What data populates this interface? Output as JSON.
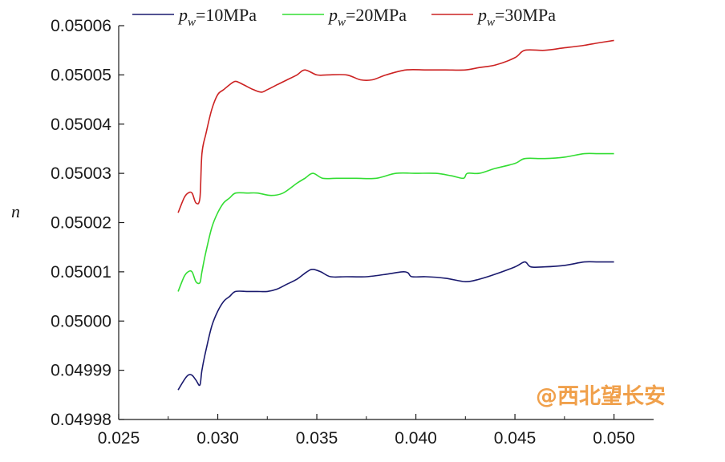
{
  "chart_data": {
    "type": "line",
    "xlabel": "",
    "ylabel": "n",
    "xlim": [
      0.025,
      0.052
    ],
    "ylim": [
      0.04998,
      0.05006
    ],
    "xticks": [
      "0.025",
      "0.030",
      "0.035",
      "0.040",
      "0.045",
      "0.050"
    ],
    "yticks": [
      "0.04998",
      "0.04999",
      "0.05000",
      "0.05001",
      "0.05002",
      "0.05003",
      "0.05004",
      "0.05005",
      "0.05006"
    ],
    "legend_position": "top",
    "series": [
      {
        "name": "pw=10MPa",
        "legend_symbol": "p",
        "legend_sub": "w",
        "legend_rest": "=10MPa",
        "color": "#1a1a6e",
        "points": [
          [
            0.028,
            0.049986
          ],
          [
            0.0283,
            0.049988
          ],
          [
            0.0285,
            0.049989
          ],
          [
            0.0287,
            0.049989
          ],
          [
            0.0289,
            0.049988
          ],
          [
            0.0291,
            0.049987
          ],
          [
            0.0292,
            0.04999
          ],
          [
            0.0294,
            0.049994
          ],
          [
            0.0297,
            0.049999
          ],
          [
            0.03,
            0.050002
          ],
          [
            0.0303,
            0.050004
          ],
          [
            0.0306,
            0.050005
          ],
          [
            0.0309,
            0.050006
          ],
          [
            0.0315,
            0.050006
          ],
          [
            0.032,
            0.050006
          ],
          [
            0.0325,
            0.050006
          ],
          [
            0.033,
            0.0500065
          ],
          [
            0.0335,
            0.0500075
          ],
          [
            0.034,
            0.0500085
          ],
          [
            0.0345,
            0.05001
          ],
          [
            0.0348,
            0.0500105
          ],
          [
            0.0352,
            0.05001
          ],
          [
            0.0357,
            0.050009
          ],
          [
            0.0365,
            0.050009
          ],
          [
            0.0375,
            0.050009
          ],
          [
            0.0385,
            0.0500095
          ],
          [
            0.0393,
            0.05001
          ],
          [
            0.0396,
            0.0500098
          ],
          [
            0.0398,
            0.050009
          ],
          [
            0.0405,
            0.050009
          ],
          [
            0.0415,
            0.0500087
          ],
          [
            0.0425,
            0.050008
          ],
          [
            0.0432,
            0.0500085
          ],
          [
            0.044,
            0.0500095
          ],
          [
            0.045,
            0.050011
          ],
          [
            0.0455,
            0.050012
          ],
          [
            0.0458,
            0.050011
          ],
          [
            0.0465,
            0.050011
          ],
          [
            0.0475,
            0.0500113
          ],
          [
            0.0485,
            0.050012
          ],
          [
            0.0492,
            0.050012
          ],
          [
            0.05,
            0.050012
          ]
        ]
      },
      {
        "name": "pw=20MPa",
        "legend_symbol": "p",
        "legend_sub": "w",
        "legend_rest": "=20MPa",
        "color": "#33dd33",
        "points": [
          [
            0.028,
            0.050006
          ],
          [
            0.0283,
            0.050009
          ],
          [
            0.0285,
            0.05001
          ],
          [
            0.0287,
            0.05001
          ],
          [
            0.0289,
            0.050008
          ],
          [
            0.0291,
            0.0500078
          ],
          [
            0.0292,
            0.05001
          ],
          [
            0.0294,
            0.050014
          ],
          [
            0.0297,
            0.050019
          ],
          [
            0.03,
            0.050022
          ],
          [
            0.0303,
            0.050024
          ],
          [
            0.0306,
            0.050025
          ],
          [
            0.0309,
            0.050026
          ],
          [
            0.0315,
            0.050026
          ],
          [
            0.032,
            0.050026
          ],
          [
            0.0327,
            0.0500255
          ],
          [
            0.0333,
            0.050026
          ],
          [
            0.034,
            0.050028
          ],
          [
            0.0344,
            0.050029
          ],
          [
            0.0348,
            0.05003
          ],
          [
            0.0353,
            0.050029
          ],
          [
            0.036,
            0.050029
          ],
          [
            0.037,
            0.050029
          ],
          [
            0.038,
            0.050029
          ],
          [
            0.039,
            0.05003
          ],
          [
            0.04,
            0.05003
          ],
          [
            0.041,
            0.05003
          ],
          [
            0.0418,
            0.0500295
          ],
          [
            0.0424,
            0.050029
          ],
          [
            0.0426,
            0.05003
          ],
          [
            0.0432,
            0.05003
          ],
          [
            0.044,
            0.050031
          ],
          [
            0.045,
            0.050032
          ],
          [
            0.0455,
            0.050033
          ],
          [
            0.0465,
            0.050033
          ],
          [
            0.0475,
            0.0500333
          ],
          [
            0.0485,
            0.050034
          ],
          [
            0.0492,
            0.050034
          ],
          [
            0.05,
            0.050034
          ]
        ]
      },
      {
        "name": "pw=30MPa",
        "legend_symbol": "p",
        "legend_sub": "w",
        "legend_rest": "=30MPa",
        "color": "#cc2222",
        "points": [
          [
            0.028,
            0.050022
          ],
          [
            0.0283,
            0.050025
          ],
          [
            0.0285,
            0.050026
          ],
          [
            0.0287,
            0.050026
          ],
          [
            0.0289,
            0.050024
          ],
          [
            0.0291,
            0.050025
          ],
          [
            0.0292,
            0.050034
          ],
          [
            0.0294,
            0.050038
          ],
          [
            0.0297,
            0.050043
          ],
          [
            0.03,
            0.050046
          ],
          [
            0.0303,
            0.050047
          ],
          [
            0.0306,
            0.050048
          ],
          [
            0.0309,
            0.0500487
          ],
          [
            0.0313,
            0.050048
          ],
          [
            0.0318,
            0.050047
          ],
          [
            0.0322,
            0.0500465
          ],
          [
            0.0325,
            0.050047
          ],
          [
            0.033,
            0.050048
          ],
          [
            0.0335,
            0.050049
          ],
          [
            0.034,
            0.05005
          ],
          [
            0.0344,
            0.050051
          ],
          [
            0.035,
            0.05005
          ],
          [
            0.0355,
            0.05005
          ],
          [
            0.0365,
            0.05005
          ],
          [
            0.0372,
            0.050049
          ],
          [
            0.0378,
            0.050049
          ],
          [
            0.0385,
            0.05005
          ],
          [
            0.0395,
            0.050051
          ],
          [
            0.0405,
            0.050051
          ],
          [
            0.0415,
            0.050051
          ],
          [
            0.0425,
            0.050051
          ],
          [
            0.0432,
            0.0500515
          ],
          [
            0.044,
            0.050052
          ],
          [
            0.045,
            0.0500535
          ],
          [
            0.0455,
            0.050055
          ],
          [
            0.0465,
            0.050055
          ],
          [
            0.0475,
            0.0500555
          ],
          [
            0.0485,
            0.050056
          ],
          [
            0.0492,
            0.0500565
          ],
          [
            0.05,
            0.050057
          ]
        ]
      }
    ]
  },
  "watermark": "@西北望长安"
}
